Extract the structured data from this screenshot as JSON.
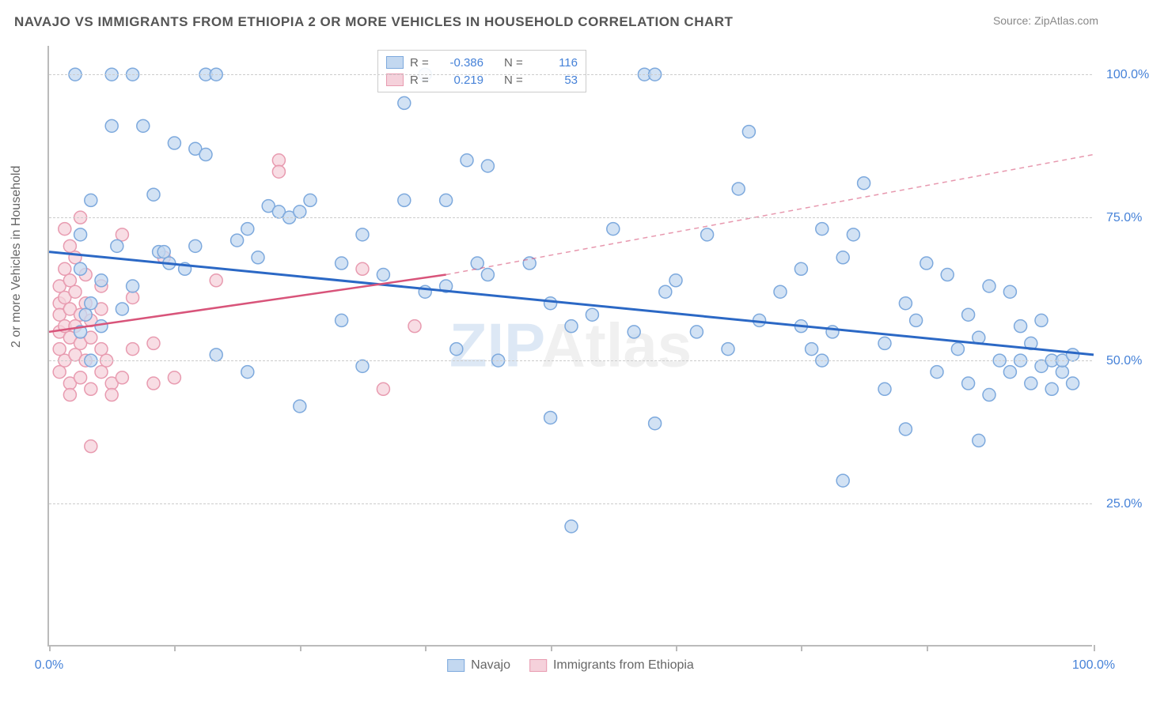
{
  "title": "NAVAJO VS IMMIGRANTS FROM ETHIOPIA 2 OR MORE VEHICLES IN HOUSEHOLD CORRELATION CHART",
  "source": "Source: ZipAtlas.com",
  "y_axis_label": "2 or more Vehicles in Household",
  "watermark": {
    "part1": "ZIP",
    "part2": "Atlas"
  },
  "chart": {
    "type": "scatter",
    "xlim": [
      0,
      100
    ],
    "ylim": [
      0,
      105
    ],
    "background_color": "#ffffff",
    "grid_color": "#cccccc",
    "axis_color": "#bbbbbb",
    "y_gridlines": [
      {
        "value": 25,
        "label": "25.0%"
      },
      {
        "value": 50,
        "label": "50.0%"
      },
      {
        "value": 75,
        "label": "75.0%"
      },
      {
        "value": 100,
        "label": "100.0%"
      }
    ],
    "x_ticks": [
      0,
      12,
      24,
      36,
      48,
      60,
      72,
      84,
      100
    ],
    "x_labels": [
      {
        "value": 0,
        "label": "0.0%"
      },
      {
        "value": 100,
        "label": "100.0%"
      }
    ],
    "marker_radius": 8,
    "marker_stroke_width": 1.5,
    "series": [
      {
        "name": "Navajo",
        "color_fill": "#c3d8f0",
        "color_stroke": "#7da9dd",
        "line_color": "#2b68c5",
        "line_width": 3,
        "trend": {
          "x1": 0,
          "y1": 69,
          "x2": 100,
          "y2": 51
        },
        "stats": {
          "R": "-0.386",
          "N": "116"
        },
        "points": [
          [
            2.5,
            100
          ],
          [
            3,
            66
          ],
          [
            3,
            72
          ],
          [
            3,
            55
          ],
          [
            3.5,
            58
          ],
          [
            4,
            60
          ],
          [
            4,
            50
          ],
          [
            4,
            78
          ],
          [
            5,
            56
          ],
          [
            5,
            64
          ],
          [
            6,
            91
          ],
          [
            6,
            100
          ],
          [
            6.5,
            70
          ],
          [
            7,
            59
          ],
          [
            8,
            100
          ],
          [
            8,
            63
          ],
          [
            9,
            91
          ],
          [
            10,
            79
          ],
          [
            10.5,
            69
          ],
          [
            11,
            69
          ],
          [
            11.5,
            67
          ],
          [
            12,
            88
          ],
          [
            13,
            66
          ],
          [
            14,
            70
          ],
          [
            14,
            87
          ],
          [
            15,
            86
          ],
          [
            15,
            100
          ],
          [
            16,
            100
          ],
          [
            16,
            51
          ],
          [
            18,
            71
          ],
          [
            19,
            48
          ],
          [
            19,
            73
          ],
          [
            20,
            68
          ],
          [
            21,
            77
          ],
          [
            22,
            76
          ],
          [
            23,
            75
          ],
          [
            24,
            76
          ],
          [
            24,
            42
          ],
          [
            25,
            78
          ],
          [
            28,
            57
          ],
          [
            28,
            67
          ],
          [
            30,
            72
          ],
          [
            30,
            49
          ],
          [
            32,
            65
          ],
          [
            34,
            95
          ],
          [
            34,
            78
          ],
          [
            36,
            62
          ],
          [
            36,
            100
          ],
          [
            38,
            78
          ],
          [
            38,
            63
          ],
          [
            39,
            52
          ],
          [
            40,
            85
          ],
          [
            41,
            67
          ],
          [
            42,
            84
          ],
          [
            42,
            65
          ],
          [
            43,
            50
          ],
          [
            46,
            67
          ],
          [
            48,
            60
          ],
          [
            48,
            40
          ],
          [
            50,
            56
          ],
          [
            50,
            21
          ],
          [
            52,
            58
          ],
          [
            54,
            73
          ],
          [
            56,
            55
          ],
          [
            57,
            100
          ],
          [
            58,
            100
          ],
          [
            58,
            39
          ],
          [
            59,
            62
          ],
          [
            60,
            64
          ],
          [
            62,
            55
          ],
          [
            63,
            72
          ],
          [
            65,
            52
          ],
          [
            66,
            80
          ],
          [
            67,
            90
          ],
          [
            68,
            57
          ],
          [
            70,
            62
          ],
          [
            72,
            56
          ],
          [
            72,
            66
          ],
          [
            73,
            52
          ],
          [
            74,
            73
          ],
          [
            74,
            50
          ],
          [
            75,
            55
          ],
          [
            76,
            68
          ],
          [
            76,
            29
          ],
          [
            77,
            72
          ],
          [
            78,
            81
          ],
          [
            80,
            45
          ],
          [
            80,
            53
          ],
          [
            82,
            60
          ],
          [
            82,
            38
          ],
          [
            83,
            57
          ],
          [
            84,
            67
          ],
          [
            85,
            48
          ],
          [
            86,
            65
          ],
          [
            87,
            52
          ],
          [
            88,
            58
          ],
          [
            88,
            46
          ],
          [
            89,
            54
          ],
          [
            89,
            36
          ],
          [
            90,
            44
          ],
          [
            90,
            63
          ],
          [
            91,
            50
          ],
          [
            92,
            48
          ],
          [
            92,
            62
          ],
          [
            93,
            50
          ],
          [
            93,
            56
          ],
          [
            94,
            46
          ],
          [
            94,
            53
          ],
          [
            95,
            57
          ],
          [
            95,
            49
          ],
          [
            96,
            50
          ],
          [
            96,
            45
          ],
          [
            97,
            48
          ],
          [
            97,
            50
          ],
          [
            98,
            46
          ],
          [
            98,
            51
          ]
        ]
      },
      {
        "name": "Immigrants from Ethiopia",
        "color_fill": "#f5d1db",
        "color_stroke": "#e89bb0",
        "line_color": "#d8547a",
        "line_width": 2.5,
        "trend": {
          "x1": 0,
          "y1": 55,
          "x2": 38,
          "y2": 65
        },
        "trend_ext": {
          "x1": 38,
          "y1": 65,
          "x2": 100,
          "y2": 86
        },
        "stats": {
          "R": "0.219",
          "N": "53"
        },
        "points": [
          [
            1,
            63
          ],
          [
            1,
            60
          ],
          [
            1,
            58
          ],
          [
            1,
            55
          ],
          [
            1,
            52
          ],
          [
            1,
            48
          ],
          [
            1.5,
            73
          ],
          [
            1.5,
            66
          ],
          [
            1.5,
            61
          ],
          [
            1.5,
            56
          ],
          [
            1.5,
            50
          ],
          [
            2,
            70
          ],
          [
            2,
            64
          ],
          [
            2,
            59
          ],
          [
            2,
            54
          ],
          [
            2,
            46
          ],
          [
            2,
            44
          ],
          [
            2.5,
            68
          ],
          [
            2.5,
            62
          ],
          [
            2.5,
            56
          ],
          [
            2.5,
            51
          ],
          [
            3,
            75
          ],
          [
            3,
            58
          ],
          [
            3,
            53
          ],
          [
            3,
            47
          ],
          [
            3.5,
            65
          ],
          [
            3.5,
            60
          ],
          [
            3.5,
            50
          ],
          [
            4,
            57
          ],
          [
            4,
            54
          ],
          [
            4,
            45
          ],
          [
            4,
            35
          ],
          [
            5,
            63
          ],
          [
            5,
            59
          ],
          [
            5,
            52
          ],
          [
            5,
            48
          ],
          [
            5.5,
            50
          ],
          [
            6,
            46
          ],
          [
            6,
            44
          ],
          [
            7,
            47
          ],
          [
            7,
            72
          ],
          [
            8,
            52
          ],
          [
            8,
            61
          ],
          [
            10,
            53
          ],
          [
            10,
            46
          ],
          [
            11,
            68
          ],
          [
            12,
            47
          ],
          [
            16,
            64
          ],
          [
            22,
            85
          ],
          [
            22,
            83
          ],
          [
            30,
            66
          ],
          [
            32,
            45
          ],
          [
            35,
            56
          ]
        ]
      }
    ]
  },
  "legend_top": {
    "R_label": "R =",
    "N_label": "N ="
  },
  "legend_bottom": [
    {
      "swatch": "blue",
      "label": "Navajo"
    },
    {
      "swatch": "pink",
      "label": "Immigrants from Ethiopia"
    }
  ]
}
